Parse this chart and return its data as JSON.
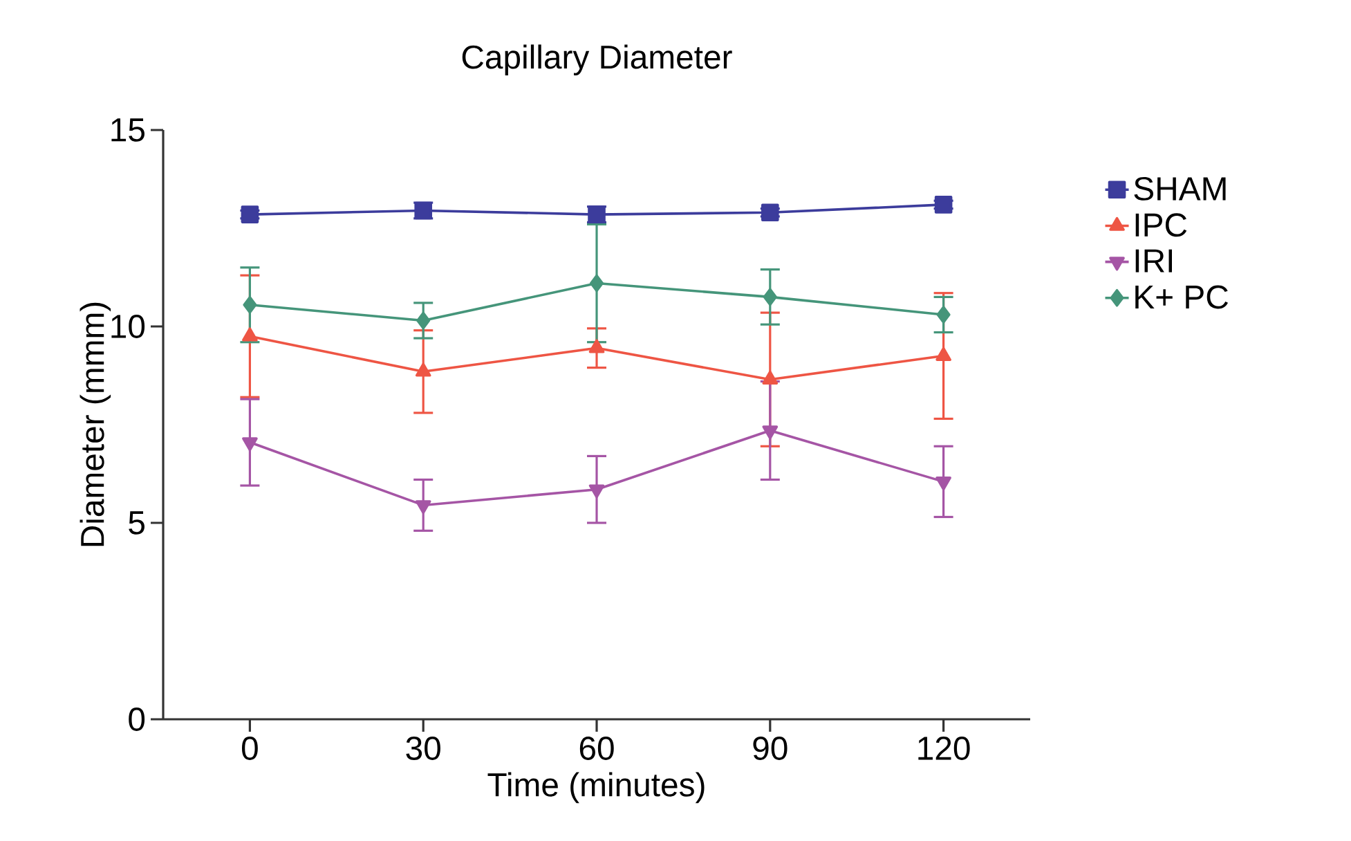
{
  "chart_data": {
    "type": "line",
    "title": "Capillary Diameter",
    "xlabel": "Time (minutes)",
    "ylabel": "Diameter (mmm)",
    "x": [
      0,
      30,
      60,
      90,
      120
    ],
    "xlim": [
      -15,
      135
    ],
    "xticks": [
      0,
      30,
      60,
      90,
      120
    ],
    "ylim": [
      0,
      15
    ],
    "yticks": [
      0,
      5,
      10,
      15
    ],
    "grid": false,
    "legend": "right",
    "line_style": "solid",
    "series": [
      {
        "name": "SHAM",
        "color": "#3c3c9c",
        "marker": "square",
        "values": [
          12.85,
          12.95,
          12.85,
          12.9,
          13.1
        ],
        "errors": [
          0.1,
          0.2,
          0.2,
          0.1,
          0.1
        ]
      },
      {
        "name": "IPC",
        "color": "#ee5544",
        "marker": "triangle",
        "values": [
          9.75,
          8.85,
          9.45,
          8.65,
          9.25
        ],
        "errors": [
          1.55,
          1.05,
          0.5,
          1.7,
          1.6
        ]
      },
      {
        "name": "IRI",
        "color": "#a555a5",
        "marker": "triangle down",
        "values": [
          7.05,
          5.45,
          5.85,
          7.35,
          6.05
        ],
        "errors": [
          1.1,
          0.65,
          0.85,
          1.25,
          0.9
        ]
      },
      {
        "name": "K+ PC",
        "color": "#45957a",
        "marker": "diamond",
        "values": [
          10.55,
          10.15,
          11.1,
          10.75,
          10.3
        ],
        "errors": [
          0.95,
          0.45,
          1.5,
          0.7,
          0.45
        ]
      }
    ]
  }
}
